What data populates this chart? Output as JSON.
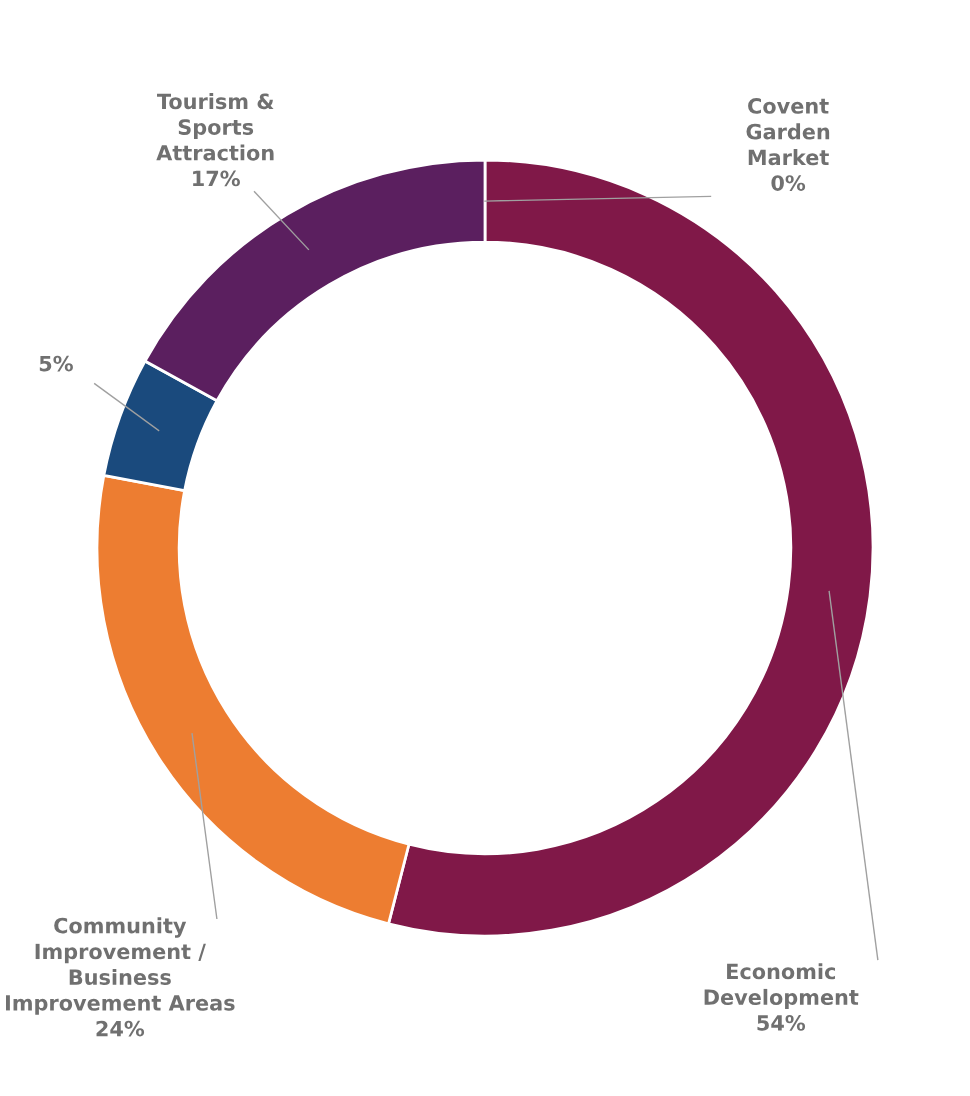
{
  "chart_data": {
    "type": "donut",
    "categories": [
      "Covent\nGarden\nMarket",
      "Economic\nDevelopment",
      "Community\nImprovement /\nBusiness\nImprovement Areas",
      null,
      "Tourism &\nSports\nAttraction"
    ],
    "values": [
      0,
      54,
      24,
      5,
      17
    ],
    "value_labels": [
      "0%",
      "54%",
      "24%",
      "5%",
      "17%"
    ],
    "colors": [
      "#a5a5a5",
      "#801848",
      "#ed7d31",
      "#1a4a7d",
      "#5b1f5f"
    ]
  }
}
